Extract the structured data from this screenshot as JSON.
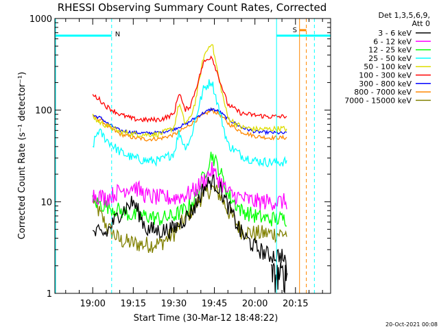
{
  "chart_data": {
    "type": "line",
    "title": "RHESSI Observing Summary Count Rates, Corrected",
    "xlabel": "Start Time (30-Mar-12 18:48:22)",
    "ylabel": "Corrected Count Rate (s⁻¹ detector⁻¹)",
    "yscale": "log",
    "ylim": [
      1,
      1000
    ],
    "xlim_minutes_after_19": [
      -14,
      88
    ],
    "x_tick_labels": [
      "19:00",
      "19:15",
      "19:30",
      "19:45",
      "20:00",
      "20:15"
    ],
    "x_tick_minutes": [
      0,
      15,
      30,
      45,
      60,
      75
    ],
    "y_tick_labels": [
      "1",
      "10",
      "100",
      "1000"
    ],
    "y_tick_values": [
      1,
      10,
      100,
      1000
    ],
    "legend_header": [
      "Det 1,3,5,6,9,",
      "Att 0"
    ],
    "series": [
      {
        "name": "3 - 6 keV",
        "color": "#000000",
        "t": [
          0,
          5,
          10,
          15,
          20,
          25,
          30,
          35,
          38,
          41,
          44,
          47,
          50,
          55,
          60,
          65,
          70,
          72
        ],
        "values": [
          4.5,
          4.5,
          7.5,
          10,
          5,
          4.8,
          5,
          7,
          9,
          14,
          17,
          14,
          9,
          4.5,
          3.2,
          2.6,
          2.6,
          1.8
        ]
      },
      {
        "name": "6 - 12 keV",
        "color": "#ff00ff",
        "t": [
          0,
          5,
          10,
          15,
          20,
          25,
          30,
          35,
          38,
          41,
          44,
          47,
          50,
          55,
          60,
          65,
          70,
          72
        ],
        "values": [
          12,
          11,
          13,
          15,
          11.5,
          11,
          11,
          12,
          13.5,
          17,
          22,
          17,
          12.5,
          11,
          10,
          10,
          10,
          10
        ]
      },
      {
        "name": "12 - 25 keV",
        "color": "#00ff00",
        "t": [
          0,
          5,
          10,
          15,
          20,
          25,
          30,
          35,
          38,
          41,
          44,
          47,
          50,
          55,
          60,
          65,
          70,
          72
        ],
        "values": [
          10,
          9,
          8,
          7,
          7,
          6.5,
          7,
          8.5,
          11,
          19,
          33,
          22,
          12,
          8,
          7,
          6.5,
          6.5,
          6.5
        ]
      },
      {
        "name": "25 - 50 keV",
        "color": "#00ffff",
        "t": [
          0,
          2,
          5,
          10,
          15,
          20,
          25,
          30,
          32,
          34,
          36,
          38,
          41,
          44,
          47,
          50,
          55,
          60,
          65,
          70,
          72
        ],
        "values": [
          40,
          60,
          48,
          35,
          30,
          28,
          28,
          34,
          58,
          40,
          46,
          80,
          170,
          210,
          95,
          42,
          32,
          28,
          27,
          27,
          28
        ]
      },
      {
        "name": "50 - 100 keV",
        "color": "#dddd00",
        "t": [
          0,
          2,
          5,
          10,
          15,
          20,
          25,
          30,
          32,
          34,
          36,
          38,
          41,
          44,
          47,
          50,
          55,
          60,
          65,
          70,
          72
        ],
        "values": [
          85,
          75,
          68,
          58,
          55,
          54,
          55,
          64,
          120,
          72,
          80,
          125,
          380,
          560,
          200,
          82,
          65,
          62,
          62,
          63,
          62
        ]
      },
      {
        "name": "100 - 300 keV",
        "color": "#ff0000",
        "t": [
          0,
          2,
          5,
          10,
          15,
          20,
          25,
          30,
          32,
          34,
          36,
          38,
          41,
          44,
          47,
          50,
          55,
          60,
          65,
          70,
          72
        ],
        "values": [
          145,
          135,
          110,
          90,
          80,
          78,
          79,
          90,
          160,
          100,
          110,
          165,
          330,
          390,
          210,
          115,
          92,
          88,
          85,
          85,
          87
        ]
      },
      {
        "name": "300 - 800 keV",
        "color": "#0000ff",
        "t": [
          0,
          3,
          6,
          10,
          15,
          20,
          25,
          30,
          35,
          40,
          44,
          47,
          50,
          55,
          60,
          65,
          70,
          72
        ],
        "values": [
          88,
          82,
          70,
          60,
          57,
          56,
          57,
          62,
          72,
          90,
          103,
          96,
          80,
          65,
          58,
          57,
          56,
          56
        ]
      },
      {
        "name": "800 - 7000 keV",
        "color": "#ff8800",
        "t": [
          0,
          3,
          6,
          10,
          15,
          20,
          25,
          30,
          35,
          40,
          44,
          47,
          50,
          55,
          60,
          65,
          70,
          72
        ],
        "values": [
          85,
          78,
          65,
          55,
          50,
          48,
          49,
          54,
          66,
          85,
          100,
          90,
          72,
          58,
          52,
          50,
          50,
          50
        ]
      },
      {
        "name": "7000 - 15000 keV",
        "color": "#808000",
        "t": [
          0,
          3,
          6,
          10,
          15,
          20,
          25,
          30,
          35,
          40,
          44,
          47,
          50,
          55,
          60,
          65,
          70,
          72
        ],
        "values": [
          11,
          7,
          5,
          3.8,
          3.5,
          3.4,
          3.5,
          4.5,
          7,
          11,
          14,
          12,
          8,
          4.8,
          4.5,
          4.5,
          4.5,
          4.5
        ]
      }
    ],
    "annotations": {
      "N_label": "N",
      "S_label": "S",
      "N_bar_minutes": [
        -14,
        7
      ],
      "S_bar_minutes": [
        68,
        88
      ],
      "S_marker_minutes": [
        76.5,
        79
      ],
      "cyan_solid_minutes": [
        68
      ],
      "cyan_dashed_minutes": [
        7,
        82
      ],
      "orange_solid_minutes": [
        76.5
      ],
      "orange_dashed_minutes": [
        79
      ],
      "N_S_value": 650,
      "colors": {
        "cyan": "#00ffff",
        "orange": "#ff8800"
      }
    }
  },
  "footer": {
    "date_stamp": "20-Oct-2021 00:08"
  }
}
